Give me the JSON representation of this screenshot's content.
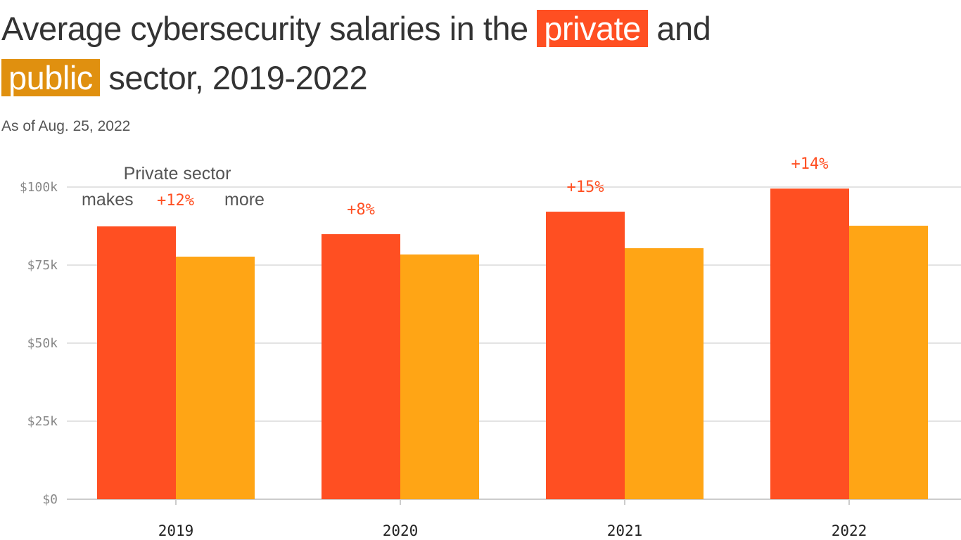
{
  "title": {
    "part1": "Average cybersecurity salaries in the",
    "private": "private",
    "part2": "and",
    "public": "public",
    "part3": "sector, 2019-2022"
  },
  "subtitle": "As of Aug. 25, 2022",
  "colors": {
    "private": "#FF4F22",
    "public": "#FFA515",
    "public_title_highlight": "#E0900F"
  },
  "chart_data": {
    "type": "bar",
    "categories": [
      "2019",
      "2020",
      "2021",
      "2022"
    ],
    "series": [
      {
        "name": "private",
        "values": [
          87400,
          84900,
          92100,
          99500
        ]
      },
      {
        "name": "public",
        "values": [
          77700,
          78400,
          80400,
          87600
        ]
      }
    ],
    "ylim": [
      0,
      100000
    ],
    "yticks": [
      0,
      25000,
      50000,
      75000,
      100000
    ],
    "ytick_labels": [
      "$0",
      "$25k",
      "$50k",
      "$75k",
      "$100k"
    ],
    "grid": true,
    "annotations": [
      "+12%",
      "+8%",
      "+15%",
      "+14%"
    ],
    "note": {
      "line1": "Private sector",
      "line2a": "makes",
      "line2b": "more"
    }
  }
}
